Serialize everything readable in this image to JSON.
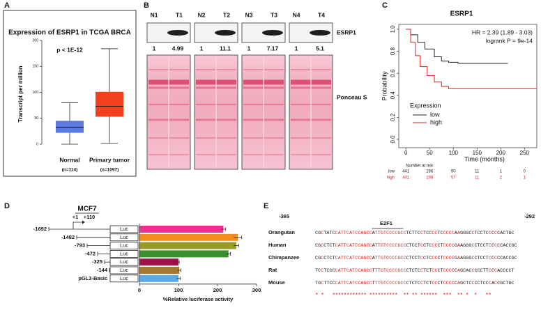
{
  "panel_labels": [
    "A",
    "B",
    "C",
    "D",
    "E"
  ],
  "chart_data": [
    {
      "type": "box",
      "title": "Expression of ESRP1 in TCGA BRCA",
      "subtitle": "p < 1E-12",
      "y_label": "Transcript per million",
      "categories": [
        "Normal",
        "Primary tumor"
      ],
      "category_notes": [
        "(n=114)",
        "(n=1097)"
      ],
      "min": [
        0,
        2
      ],
      "q1": [
        22,
        53
      ],
      "median": [
        32,
        73
      ],
      "q3": [
        45,
        101
      ],
      "max": [
        80,
        184
      ],
      "colors": [
        "#5b7be0",
        "#f0401c"
      ],
      "ylim": [
        0,
        200
      ],
      "yticks": [
        0,
        50,
        100,
        150,
        200
      ]
    },
    {
      "type": "line",
      "title": "ESRP1",
      "annotations": [
        "HR = 2.39 (1.89 - 3.03)",
        "logrank P = 9e-14"
      ],
      "x_label": "Time (months)",
      "y_label": "Probability",
      "legend_title": "Expression",
      "series": [
        {
          "name": "low",
          "color": "#222222",
          "x": [
            0,
            10,
            25,
            40,
            60,
            75,
            90,
            110,
            215
          ],
          "values": [
            1,
            0.95,
            0.88,
            0.82,
            0.75,
            0.71,
            0.7,
            0.69,
            0.69
          ]
        },
        {
          "name": "high",
          "color": "#e0201e",
          "x": [
            0,
            10,
            20,
            30,
            45,
            60,
            75,
            90,
            120,
            275
          ],
          "values": [
            1,
            0.88,
            0.76,
            0.66,
            0.58,
            0.52,
            0.48,
            0.46,
            0.46,
            0.46
          ]
        }
      ],
      "xlim": [
        -15,
        276
      ],
      "xticks": [
        0,
        50,
        100,
        150,
        200,
        250
      ],
      "ylim": [
        -0.076,
        1.044
      ],
      "yticks": [
        {
          "value": 0,
          "label": "0.0"
        },
        0.2,
        0.4,
        0.6,
        0.8,
        {
          "value": 1,
          "label": "1.0"
        }
      ],
      "risk_table": {
        "title": "Number at risk",
        "rows": [
          {
            "name": "low",
            "values": [
              441,
              286,
              90,
              11,
              1,
              0
            ]
          },
          {
            "name": "high",
            "values": [
              441,
              198,
              57,
              11,
              2,
              1
            ]
          }
        ]
      }
    },
    {
      "type": "hbar",
      "title": "MCF7",
      "categories": [
        "-1692",
        "-1482",
        "-793",
        "-472",
        "-325",
        "-144",
        "pGL3-Basic"
      ],
      "values": [
        215,
        252,
        248,
        228,
        100,
        102,
        100
      ],
      "errors": [
        6,
        10,
        6,
        5,
        2,
        4,
        5
      ],
      "colors": [
        "#e8308e",
        "#f28c1d",
        "#9a9a26",
        "#3c8f2e",
        "#9c1248",
        "#a4782d",
        "#5ba9e6"
      ],
      "construct_labels": {
        "start": "+1",
        "end": "+110",
        "reporter": "Luc"
      },
      "x_label": "%Relative luciferase activity",
      "xlim": [
        0,
        300
      ],
      "xticks": [
        0,
        100,
        200,
        300
      ]
    }
  ],
  "blot": {
    "lanes": [
      {
        "normal": "N1",
        "tumor": "T1",
        "normal_ratio": 1,
        "tumor_ratio": 4.99
      },
      {
        "normal": "N2",
        "tumor": "T2",
        "normal_ratio": 1,
        "tumor_ratio": 11.1
      },
      {
        "normal": "N3",
        "tumor": "T3",
        "normal_ratio": 1,
        "tumor_ratio": 7.17
      },
      {
        "normal": "N4",
        "tumor": "T4",
        "normal_ratio": 1,
        "tumor_ratio": 5.1
      }
    ],
    "protein_label": "ESRP1",
    "loading_label": "Ponceau S"
  },
  "alignment": {
    "start": "-365",
    "end": "-292",
    "motif": "E2F1",
    "rows": [
      {
        "species": "Orangutan",
        "sequence": "CGCTATCCATTCATCCAGCCATTGTCCCCGCCTCTTCCTCCCCTCCCCCAAGGGCCTCCTCCCCCACTGC"
      },
      {
        "species": "Human",
        "sequence": "CGCCTCTCATTCATCCAGCCATTGTCCCCGCCCTCCTCCTCCCCTCCCCGAAGGGCCTCCTCCCCCACCGC"
      },
      {
        "species": "Chimpanzee",
        "sequence": "CGCCTCTCATTCATCCAGCCATTGTCCCCGCCCTCCTCCTCCCCTCCCCGAAGGGCCTCCTCCCCCACCGC"
      },
      {
        "species": "Rat",
        "sequence": "TCCTCCCCATTCATCCAGCCTTTGTCCCCGCCCTCTCCTCTCCCTCCCCCAGCACCCCCTTCCCACCCCT"
      },
      {
        "species": "Mouse",
        "sequence": "TGCTTCCCATTCATCCAGCCTTTGTCCCCGCCCTCTCCTCTCCCTCCCCCAGCTCCCCTCCCACCGCTGC"
      }
    ],
    "conservation": "* *   ************ **********  ** ** ******  ***  ** *  *   **"
  }
}
